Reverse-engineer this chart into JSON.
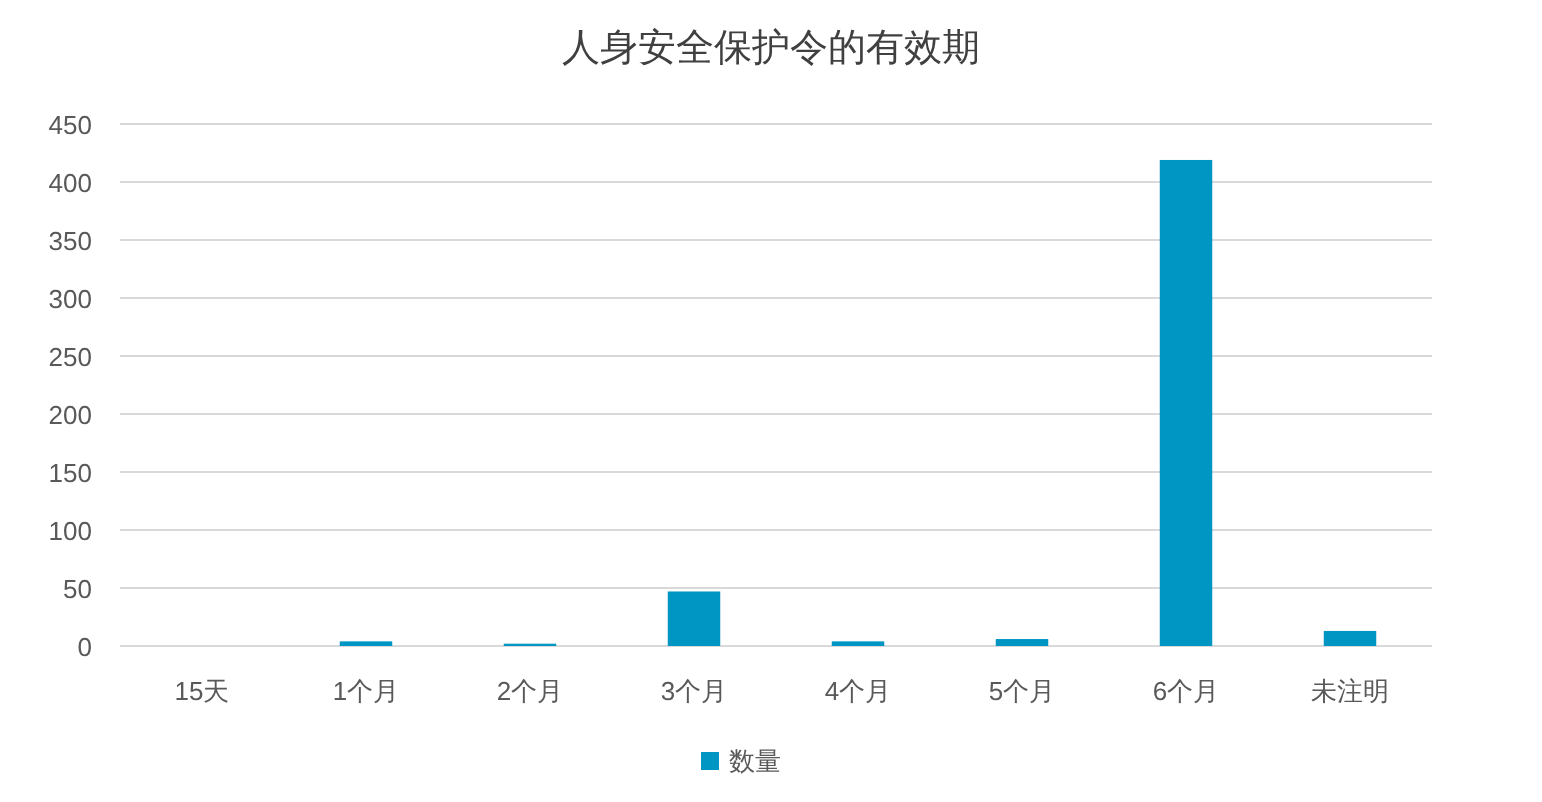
{
  "chart_data": {
    "type": "bar",
    "title": "人身安全保护令的有效期",
    "categories": [
      "15天",
      "1个月",
      "2个月",
      "3个月",
      "4个月",
      "5个月",
      "6个月",
      "未注明"
    ],
    "series": [
      {
        "name": "数量",
        "color": "#0096c4",
        "values": [
          0,
          4,
          2,
          47,
          4,
          6,
          419,
          13
        ]
      }
    ],
    "ylim": [
      0,
      450
    ],
    "yticks": [
      0,
      50,
      100,
      150,
      200,
      250,
      300,
      350,
      400,
      450
    ],
    "grid": "y",
    "legend": "bottom"
  }
}
